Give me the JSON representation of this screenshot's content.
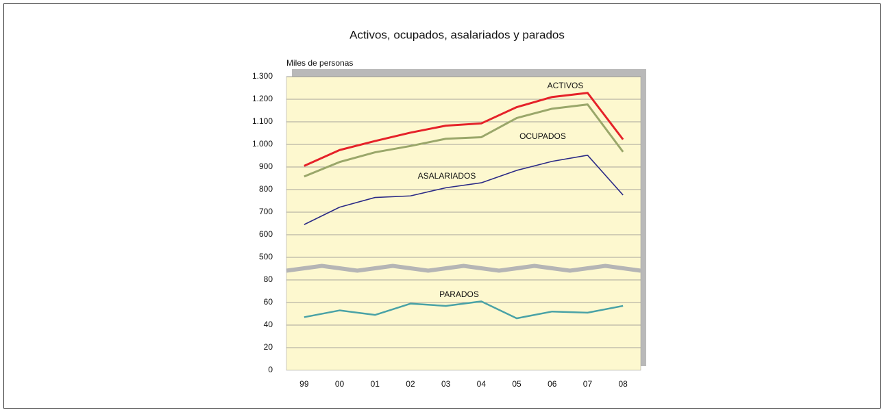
{
  "chart_data": {
    "type": "line",
    "title": "Activos, ocupados, asalariados y parados",
    "y_label": "Miles de personas",
    "categories": [
      "99",
      "00",
      "01",
      "02",
      "03",
      "04",
      "05",
      "06",
      "07",
      "08"
    ],
    "series": [
      {
        "name": "ACTIVOS",
        "color": "#e52229",
        "values": [
          905,
          975,
          1015,
          1052,
          1083,
          1093,
          1165,
          1210,
          1228,
          1022
        ]
      },
      {
        "name": "OCUPADOS",
        "color": "#9aa76a",
        "values": [
          858,
          922,
          965,
          993,
          1025,
          1032,
          1117,
          1158,
          1177,
          967
        ]
      },
      {
        "name": "ASALARIADOS",
        "color": "#2b2a86",
        "values": [
          645,
          722,
          765,
          772,
          808,
          830,
          885,
          925,
          952,
          776
        ]
      },
      {
        "name": "PARADOS",
        "color": "#49a2a6",
        "values": [
          47,
          53,
          49,
          59,
          57,
          61,
          46,
          52,
          51,
          57
        ]
      }
    ],
    "ylim": [
      0,
      {
        "value": 1300,
        "label": "1.300"
      }
    ],
    "yticks": [
      0,
      20,
      40,
      60,
      80,
      500,
      600,
      700,
      800,
      900,
      {
        "value": 1000,
        "label": "1.000"
      },
      {
        "value": 1100,
        "label": "1.100"
      },
      {
        "value": 1200,
        "label": "1.200"
      },
      {
        "value": 1300,
        "label": "1.300"
      }
    ],
    "axis_break": [
      80,
      500
    ],
    "grid": true
  }
}
